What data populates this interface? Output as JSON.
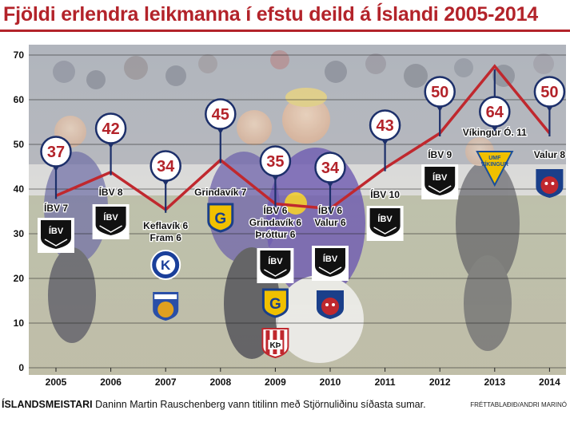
{
  "title": "Fjöldi erlendra leikmanna í efstu deild á Íslandi 2005-2014",
  "caption": {
    "keyword": "ÍSLANDSMEISTARI",
    "text": " Daninn Martin Rauschenberg vann titilinn með Stjörnuliðinu síðasta sumar.",
    "credit": "FRÉTTABLAÐIÐ/ANDRI MARINÓ"
  },
  "colors": {
    "accent": "#b3232a",
    "line": "#c0282e",
    "text": "#111111",
    "pin_fill": "#ffffff"
  },
  "chart_data": {
    "type": "line",
    "x": [
      "2005",
      "2006",
      "2007",
      "2008",
      "2009",
      "2010",
      "2011",
      "2012",
      "2013",
      "2014"
    ],
    "series": [
      {
        "values": [
          37,
          42,
          34,
          45,
          35,
          34,
          43,
          50,
          64,
          50
        ],
        "line_values": [
          38.5,
          43.8,
          35.4,
          46.5,
          36.7,
          35.6,
          44.7,
          52.5,
          67.5,
          52.5
        ]
      }
    ],
    "ylim": [
      0,
      70
    ],
    "yticks": [
      0,
      10,
      20,
      30,
      40,
      50,
      60,
      70
    ],
    "grid": true,
    "background": "photo of celebrating football players",
    "annotations": [
      {
        "year": "2005",
        "lines": [
          "ÍBV 7"
        ],
        "logos": [
          "ibv-logo"
        ]
      },
      {
        "year": "2006",
        "lines": [
          "ÍBV 8"
        ],
        "logos": [
          "ibv-logo"
        ]
      },
      {
        "year": "2007",
        "lines": [
          "Keflavík 6",
          "Fram 6"
        ],
        "logos": [
          "keflavik-logo",
          "fram-logo"
        ]
      },
      {
        "year": "2008",
        "lines": [
          "Grindavík 7"
        ],
        "logos": [
          "grindavik-logo"
        ]
      },
      {
        "year": "2009",
        "lines": [
          "ÍBV 6",
          "Grindavík 6",
          "Þróttur 6"
        ],
        "logos": [
          "ibv-logo",
          "grindavik-logo",
          "throttur-logo"
        ]
      },
      {
        "year": "2010",
        "lines": [
          "ÍBV 6",
          "Valur 6"
        ],
        "logos": [
          "ibv-logo",
          "valur-logo"
        ]
      },
      {
        "year": "2011",
        "lines": [
          "ÍBV 10"
        ],
        "logos": [
          "ibv-logo"
        ]
      },
      {
        "year": "2012",
        "lines": [
          "ÍBV 9"
        ],
        "logos": [
          "ibv-logo"
        ]
      },
      {
        "year": "2013",
        "lines": [
          "Víkingur Ó. 11"
        ],
        "logos": [
          "vikingur-logo"
        ]
      },
      {
        "year": "2014",
        "lines": [
          "Valur 8"
        ],
        "logos": [
          "valur-logo"
        ]
      }
    ],
    "logo_text": {
      "ibv": "ÍBV",
      "grindavik": "G",
      "keflavik": "K",
      "vikingur": "VÍKINGUR"
    }
  }
}
